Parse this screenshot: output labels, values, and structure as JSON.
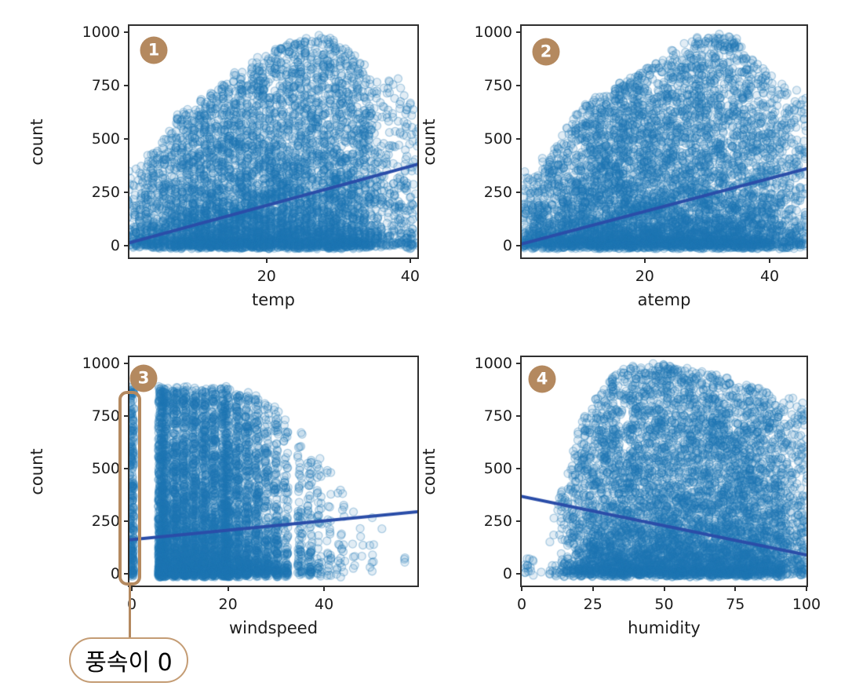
{
  "figure": {
    "background": "#ffffff",
    "point_color": "#1f77b4",
    "line_color": "#2a4da8",
    "accent_color": "#b4895f",
    "pill_border_color": "#c49c74",
    "text_color": "#1c1c1c",
    "spine_color": "#2f2f2f"
  },
  "chart_data": [
    {
      "type": "scatter",
      "badge": "1",
      "xlabel": "temp",
      "ylabel": "count",
      "xlim": [
        0.9,
        41.0
      ],
      "ylim": [
        -55,
        1028
      ],
      "xticks": [
        20,
        40
      ],
      "yticks": [
        0,
        250,
        500,
        750,
        1000
      ],
      "grid": false,
      "regression_line": {
        "x": [
          0.9,
          41.0
        ],
        "y": [
          14,
          380
        ]
      },
      "point_style": {
        "radius": 5,
        "fill_alpha": 0.13,
        "edge_alpha": 0.33
      },
      "clouds": [
        {
          "seed": 11,
          "n": 6000,
          "kind": "continuous",
          "x_weights": [
            [
              0.9,
              0.25
            ],
            [
              5,
              0.45
            ],
            [
              9,
              0.78
            ],
            [
              13,
              1
            ],
            [
              30,
              1
            ],
            [
              33,
              0.85
            ],
            [
              34,
              0.5
            ],
            [
              36,
              0.3
            ],
            [
              41,
              0.22
            ]
          ],
          "x_grid": 0.82,
          "x_jitter": 0.3,
          "envelope": [
            [
              0.9,
              340
            ],
            [
              4,
              430
            ],
            [
              8,
              620
            ],
            [
              12,
              700
            ],
            [
              16,
              820
            ],
            [
              20,
              900
            ],
            [
              24,
              970
            ],
            [
              28,
              995
            ],
            [
              31,
              950
            ],
            [
              33,
              880
            ],
            [
              35,
              770
            ],
            [
              38,
              790
            ],
            [
              41,
              620
            ]
          ],
          "y_bias": 2.1,
          "y_jitter": 30
        }
      ]
    },
    {
      "type": "scatter",
      "badge": "2",
      "xlabel": "atemp",
      "ylabel": "count",
      "xlim": [
        0.3,
        45.9
      ],
      "ylim": [
        -55,
        1028
      ],
      "xticks": [
        20,
        40
      ],
      "yticks": [
        0,
        250,
        500,
        750,
        1000
      ],
      "grid": false,
      "regression_line": {
        "x": [
          0.3,
          45.9
        ],
        "y": [
          8,
          360
        ]
      },
      "point_style": {
        "radius": 5,
        "fill_alpha": 0.13,
        "edge_alpha": 0.33
      },
      "clouds": [
        {
          "seed": 22,
          "n": 6000,
          "kind": "continuous",
          "x_weights": [
            [
              0.3,
              0.3
            ],
            [
              6,
              0.5
            ],
            [
              12,
              0.85
            ],
            [
              16,
              1
            ],
            [
              31,
              1
            ],
            [
              36,
              0.85
            ],
            [
              40,
              0.55
            ],
            [
              43,
              0.38
            ],
            [
              45.9,
              0.3
            ]
          ],
          "x_grid": 0.76,
          "x_jitter": 0.3,
          "envelope": [
            [
              0.3,
              330
            ],
            [
              5,
              430
            ],
            [
              10,
              670
            ],
            [
              14,
              700
            ],
            [
              18,
              800
            ],
            [
              24,
              900
            ],
            [
              30,
              990
            ],
            [
              34,
              985
            ],
            [
              38,
              850
            ],
            [
              42,
              770
            ],
            [
              45.9,
              700
            ]
          ],
          "y_bias": 2.1,
          "y_jitter": 30
        }
      ]
    },
    {
      "type": "scatter",
      "badge": "3",
      "xlabel": "windspeed",
      "ylabel": "count",
      "xlim": [
        -0.5,
        59.4
      ],
      "ylim": [
        -55,
        1028
      ],
      "xticks": [
        0,
        20,
        40
      ],
      "yticks": [
        0,
        250,
        500,
        750,
        1000
      ],
      "grid": false,
      "regression_line": {
        "x": [
          -0.5,
          59.4
        ],
        "y": [
          162,
          295
        ]
      },
      "point_style": {
        "radius": 5,
        "fill_alpha": 0.13,
        "edge_alpha": 0.33
      },
      "clouds": [
        {
          "seed": 33,
          "n": 300,
          "kind": "discrete",
          "values": [
            [
              0,
              1
            ]
          ],
          "x_jitter": 0.5,
          "envelope": [
            [
              0,
              880
            ]
          ],
          "y_bias": 1.5,
          "y_jitter": 25
        },
        {
          "seed": 34,
          "n": 5600,
          "kind": "discrete",
          "values": [
            [
              6,
              1
            ],
            [
              7,
              1
            ],
            [
              9,
              1
            ],
            [
              11,
              1
            ],
            [
              13,
              0.98
            ],
            [
              15,
              0.95
            ],
            [
              17,
              0.9
            ],
            [
              19,
              0.85
            ],
            [
              20,
              0.8
            ],
            [
              22,
              0.72
            ],
            [
              24,
              0.62
            ],
            [
              26,
              0.52
            ],
            [
              28,
              0.42
            ],
            [
              30,
              0.34
            ],
            [
              32,
              0.26
            ],
            [
              35,
              0.18
            ],
            [
              37,
              0.12
            ],
            [
              39,
              0.08
            ],
            [
              41,
              0.05
            ],
            [
              43,
              0.035
            ],
            [
              44,
              0.025
            ],
            [
              46,
              0.018
            ],
            [
              48,
              0.012
            ],
            [
              50,
              0.009
            ],
            [
              52,
              0.007
            ],
            [
              57,
              0.005
            ]
          ],
          "x_jitter": 0.5,
          "envelope": [
            [
              6,
              880
            ],
            [
              20,
              880
            ],
            [
              26,
              840
            ],
            [
              30,
              780
            ],
            [
              33,
              700
            ],
            [
              36,
              640
            ],
            [
              40,
              520
            ],
            [
              44,
              420
            ],
            [
              48,
              320
            ],
            [
              52,
              260
            ],
            [
              57,
              330
            ]
          ],
          "y_bias": 1.9,
          "y_jitter": 30
        }
      ],
      "annotation": {
        "label": "풍속이 0",
        "highlight": {
          "x_min": -2.8,
          "x_max": 2.0,
          "y_min": -55,
          "y_max": 868
        }
      }
    },
    {
      "type": "scatter",
      "badge": "4",
      "xlabel": "humidity",
      "ylabel": "count",
      "xlim": [
        0,
        100
      ],
      "ylim": [
        -55,
        1028
      ],
      "xticks": [
        0,
        25,
        50,
        75,
        100
      ],
      "yticks": [
        0,
        250,
        500,
        750,
        1000
      ],
      "grid": false,
      "regression_line": {
        "x": [
          0,
          100
        ],
        "y": [
          368,
          90
        ]
      },
      "point_style": {
        "radius": 5,
        "fill_alpha": 0.13,
        "edge_alpha": 0.33
      },
      "clouds": [
        {
          "seed": 44,
          "n": 6000,
          "kind": "continuous",
          "x_weights": [
            [
              0,
              0.05
            ],
            [
              2,
              0.02
            ],
            [
              8,
              0
            ],
            [
              13,
              0.08
            ],
            [
              17,
              0.3
            ],
            [
              22,
              0.55
            ],
            [
              28,
              0.8
            ],
            [
              38,
              1
            ],
            [
              60,
              1
            ],
            [
              75,
              0.92
            ],
            [
              85,
              0.8
            ],
            [
              92,
              0.55
            ],
            [
              96,
              0.35
            ],
            [
              99,
              0.45
            ],
            [
              100,
              0.6
            ]
          ],
          "x_grid": 1,
          "x_jitter": 0.35,
          "envelope": [
            [
              0,
              130
            ],
            [
              8,
              60
            ],
            [
              14,
              430
            ],
            [
              18,
              600
            ],
            [
              22,
              760
            ],
            [
              28,
              880
            ],
            [
              35,
              980
            ],
            [
              50,
              992
            ],
            [
              65,
              950
            ],
            [
              75,
              905
            ],
            [
              85,
              880
            ],
            [
              93,
              840
            ],
            [
              100,
              800
            ]
          ],
          "y_bias": 1.9,
          "y_jitter": 30
        }
      ]
    }
  ]
}
